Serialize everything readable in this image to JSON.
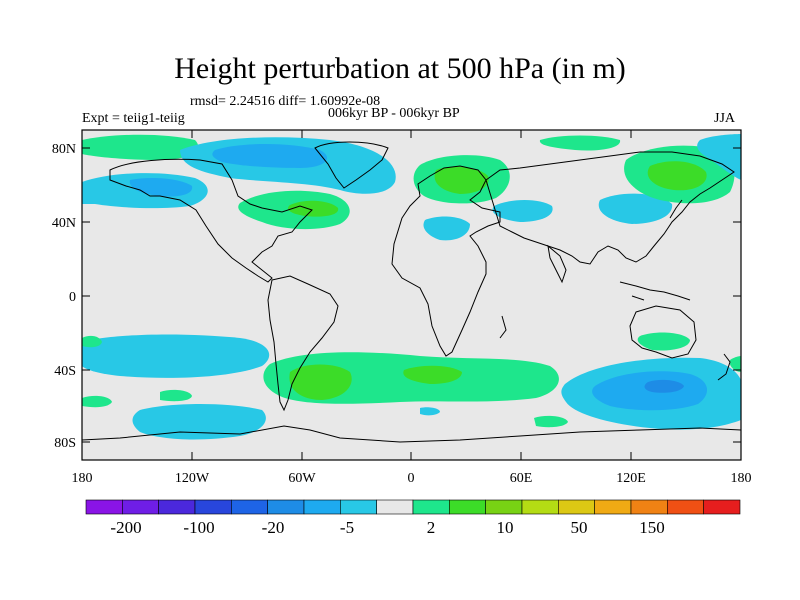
{
  "title": "Height perturbation at 500 hPa (in m)",
  "stats": "rmsd= 2.24516  diff= 1.60992e-08",
  "expt": "Expt = teiig1-teiig",
  "period": "006kyr BP - 006kyr BP",
  "season": "JJA",
  "lat_ticks": [
    "80N",
    "40N",
    "0",
    "40S",
    "80S"
  ],
  "lon_ticks": [
    "180",
    "120W",
    "60W",
    "0",
    "60E",
    "120E",
    "180"
  ],
  "colorbar": {
    "labels": [
      "-200",
      "-100",
      "-20",
      "-5",
      "2",
      "10",
      "50",
      "150"
    ],
    "colors": [
      "#8a14e6",
      "#6f1ee6",
      "#4b28dc",
      "#2846dc",
      "#1e64e6",
      "#1e8ce6",
      "#1eaaf0",
      "#28c8e6",
      "#e8e8e8",
      "#1ee68c",
      "#3cdc28",
      "#78d214",
      "#b4dc14",
      "#dcc814",
      "#f0aa14",
      "#f08214",
      "#f05014",
      "#e61e1e"
    ]
  },
  "map_colors": {
    "ocean_bg": "#e8e8e8",
    "neg_light": "#28c8e6",
    "neg_mid": "#1eaaf0",
    "neg_strong": "#1e8ce6",
    "pos_light": "#1ee68c",
    "pos_mid": "#3cdc28"
  }
}
